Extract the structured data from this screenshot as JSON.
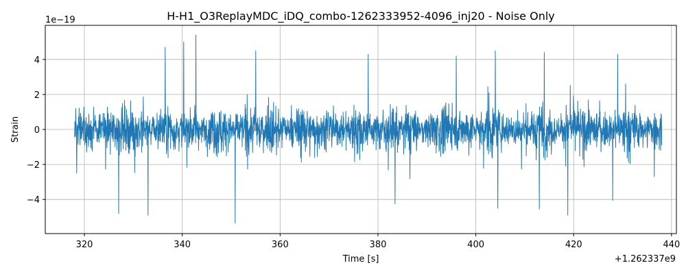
{
  "chart_data": {
    "type": "line",
    "title": "H-H1_O3ReplayMDC_iDQ_combo-1262333952-4096_inj20 - Noise Only",
    "xlabel": "Time [s]",
    "ylabel": "Strain",
    "x_offset_label": "+1.262337e9",
    "y_scale_label": "1e−19",
    "xlim": [
      312,
      441
    ],
    "ylim": [
      -5.95,
      5.95
    ],
    "x_ticks": [
      320,
      340,
      360,
      380,
      400,
      420,
      440
    ],
    "x_tick_labels": [
      "320",
      "340",
      "360",
      "380",
      "400",
      "420",
      "440"
    ],
    "y_ticks": [
      -4,
      -2,
      0,
      2,
      4
    ],
    "y_tick_labels": [
      "−4",
      "−2",
      "0",
      "2",
      "4"
    ],
    "grid": true,
    "series": [
      {
        "color": "#1f77b4",
        "x_range": [
          318.0,
          438.0
        ],
        "typical_amplitude": 1.8,
        "peak_max": 5.4,
        "peak_min": -5.35,
        "description_values": {
          "max_points": [
            [
              336.5,
              4.7
            ],
            [
              340.3,
              5.0
            ],
            [
              342.8,
              5.4
            ],
            [
              355.0,
              4.5
            ],
            [
              378.0,
              4.3
            ],
            [
              396.0,
              4.2
            ],
            [
              404.0,
              4.5
            ],
            [
              414.0,
              4.4
            ],
            [
              429.0,
              4.3
            ]
          ],
          "min_points": [
            [
              327.0,
              -4.8
            ],
            [
              333.0,
              -4.9
            ],
            [
              350.8,
              -5.35
            ],
            [
              383.5,
              -4.25
            ],
            [
              404.5,
              -4.5
            ],
            [
              413.0,
              -4.55
            ],
            [
              418.8,
              -4.9
            ],
            [
              428.0,
              -4.05
            ],
            [
              436.5,
              -2.7
            ]
          ]
        }
      }
    ]
  }
}
